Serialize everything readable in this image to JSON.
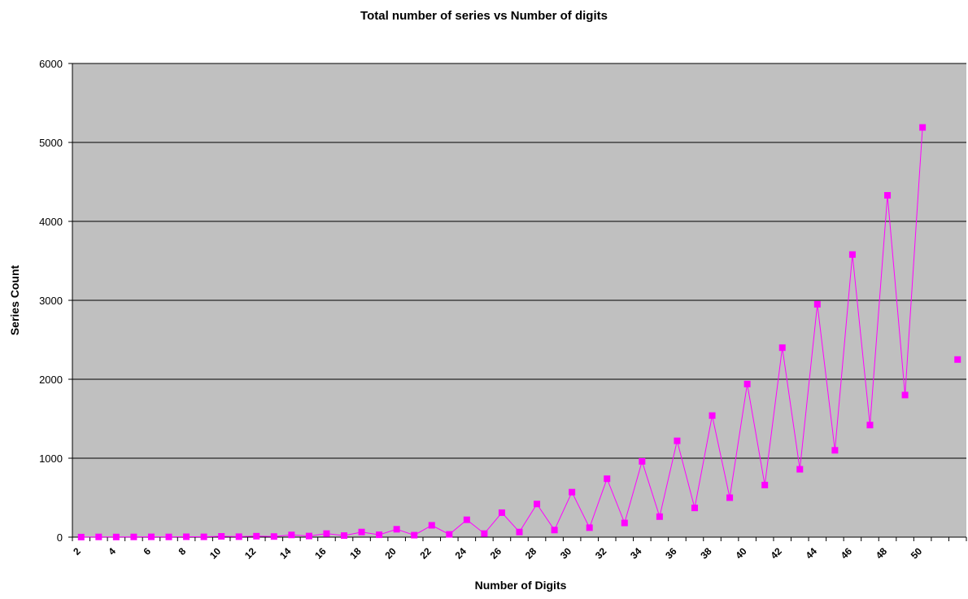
{
  "chart_data": {
    "type": "line",
    "title": "Total number of series vs Number of digits",
    "xlabel": "Number of Digits",
    "ylabel": "Series Count",
    "x": [
      2,
      3,
      4,
      5,
      6,
      7,
      8,
      9,
      10,
      11,
      12,
      13,
      14,
      15,
      16,
      17,
      18,
      19,
      20,
      21,
      22,
      23,
      24,
      25,
      26,
      27,
      28,
      29,
      30,
      31,
      32,
      33,
      34,
      35,
      36,
      37,
      38,
      39,
      40,
      41,
      42,
      43,
      44,
      45,
      46,
      47,
      48,
      49,
      50,
      51,
      52
    ],
    "x_tick_labels": [
      "2",
      "4",
      "6",
      "8",
      "10",
      "12",
      "14",
      "16",
      "18",
      "20",
      "22",
      "24",
      "26",
      "28",
      "30",
      "32",
      "34",
      "36",
      "38",
      "40",
      "42",
      "44",
      "46",
      "48",
      "50"
    ],
    "series": [
      {
        "values": [
          1,
          3,
          2,
          3,
          4,
          3,
          5,
          4,
          10,
          6,
          12,
          8,
          28,
          14,
          45,
          20,
          65,
          30,
          100,
          25,
          150,
          35,
          220,
          45,
          310,
          65,
          420,
          90,
          570,
          120,
          740,
          180,
          960,
          260,
          1220,
          370,
          1540,
          500,
          1940,
          660,
          2400,
          860,
          2950,
          1100,
          3580,
          1420,
          4330,
          1800,
          5190,
          null,
          2250
        ],
        "color": "#ff00ff"
      }
    ],
    "ylim": [
      0,
      6000
    ],
    "y_ticks": [
      0,
      1000,
      2000,
      3000,
      4000,
      5000,
      6000
    ],
    "grid": true,
    "plot_background": "#c0c0c0",
    "marker": "square"
  }
}
